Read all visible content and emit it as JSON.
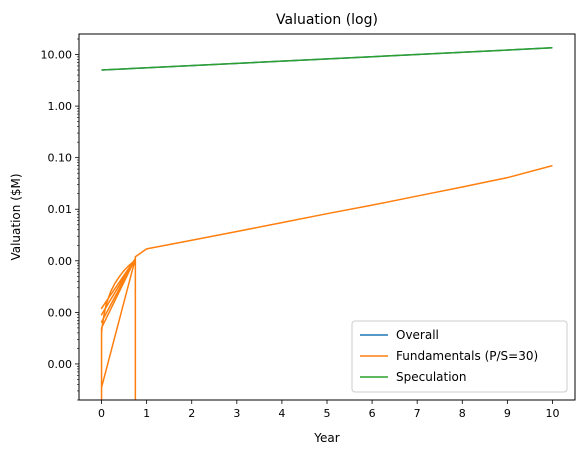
{
  "chart_data": {
    "type": "line",
    "title": "Valuation (log)",
    "xlabel": "Year",
    "ylabel": "Valuation ($M)",
    "xlim": [
      -0.5,
      10.5
    ],
    "ylim": [
      2e-06,
      25
    ],
    "yscale": "log",
    "x_ticks": [
      0,
      1,
      2,
      3,
      4,
      5,
      6,
      7,
      8,
      9,
      10
    ],
    "x_tick_labels": [
      "0",
      "1",
      "2",
      "3",
      "4",
      "5",
      "6",
      "7",
      "8",
      "9",
      "10"
    ],
    "y_ticks": [
      1e-05,
      0.0001,
      0.001,
      0.01,
      0.1,
      1,
      10
    ],
    "y_tick_labels": [
      "0.00",
      "0.00",
      "0.00",
      "0.01",
      "0.10",
      "1.00",
      "10.00"
    ],
    "grid": false,
    "legend_position": "lower right",
    "series": [
      {
        "name": "Overall",
        "color": "#1f77b4",
        "x": [
          0,
          10
        ],
        "y": [
          5.0,
          13.5
        ]
      },
      {
        "name": "Fundamentals (P/S=30)",
        "color": "#ff7f0e",
        "x": [
          0,
          0,
          0.01,
          0.05,
          0.1,
          0.2,
          0.3,
          0.4,
          0.5,
          0.6,
          0.7,
          0.75,
          0.75,
          0.75,
          0,
          0,
          0.75,
          0,
          0.75,
          0,
          0.75,
          0,
          0.75,
          0.75,
          1.0,
          2,
          3,
          4,
          5,
          6,
          7,
          8,
          9,
          10
        ],
        "y": [
          1e-06,
          4e-05,
          5e-05,
          8.5e-05,
          0.00014,
          0.00025,
          0.00037,
          0.0005,
          0.00065,
          0.0008,
          0.00095,
          0.0011,
          1e-06,
          0.0011,
          3.5e-06,
          5e-05,
          0.0011,
          6.5e-05,
          0.0011,
          9e-05,
          0.0011,
          0.00012,
          0.0011,
          0.0012,
          0.0017,
          0.0025,
          0.0037,
          0.0055,
          0.0082,
          0.012,
          0.018,
          0.027,
          0.041,
          0.07
        ]
      },
      {
        "name": "Speculation",
        "color": "#2ca02c",
        "x": [
          0,
          10
        ],
        "y": [
          5.0,
          13.5
        ]
      }
    ]
  }
}
